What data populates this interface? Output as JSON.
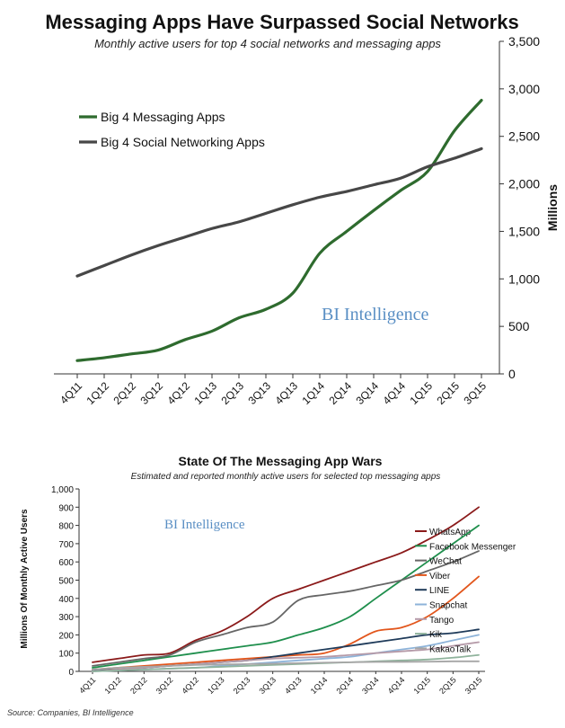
{
  "chart_data": [
    {
      "type": "line",
      "title": "Messaging Apps Have Surpassed Social Networks",
      "subtitle": "Monthly active users for top 4 social networks and messaging apps",
      "xlabel": "",
      "ylabel": "Millions",
      "ylim": [
        0,
        3500
      ],
      "yticks": [
        "0",
        "500",
        "1,000",
        "1,500",
        "2,000",
        "2,500",
        "3,000",
        "3,500"
      ],
      "ytick_values": [
        0,
        500,
        1000,
        1500,
        2000,
        2500,
        3000,
        3500
      ],
      "categories": [
        "4Q11",
        "1Q12",
        "2Q12",
        "3Q12",
        "4Q12",
        "1Q13",
        "2Q13",
        "3Q13",
        "4Q13",
        "1Q14",
        "2Q14",
        "3Q14",
        "4Q14",
        "1Q15",
        "2Q15",
        "3Q15"
      ],
      "legend_position": "top-left",
      "grid": false,
      "watermark": "BI Intelligence",
      "series": [
        {
          "name": "Big 4 Messaging Apps",
          "color": "#2e6b2e",
          "values": [
            140,
            170,
            210,
            250,
            360,
            450,
            590,
            680,
            850,
            1270,
            1500,
            1720,
            1930,
            2130,
            2560,
            2880
          ]
        },
        {
          "name": "Big 4 Social Networking Apps",
          "color": "#474747",
          "values": [
            1030,
            1140,
            1250,
            1350,
            1440,
            1530,
            1600,
            1690,
            1780,
            1860,
            1920,
            1990,
            2060,
            2180,
            2270,
            2370
          ]
        }
      ]
    },
    {
      "type": "line",
      "title": "State Of The Messaging App Wars",
      "subtitle": "Estimated and reported monthly active users for selected top messaging apps",
      "xlabel": "",
      "ylabel": "Millions Of Monthly Active Users",
      "ylim": [
        0,
        1000
      ],
      "yticks": [
        "0",
        "100",
        "200",
        "300",
        "400",
        "500",
        "600",
        "700",
        "800",
        "900",
        "1,000"
      ],
      "ytick_values": [
        0,
        100,
        200,
        300,
        400,
        500,
        600,
        700,
        800,
        900,
        1000
      ],
      "categories": [
        "4Q11",
        "1Q12",
        "2Q12",
        "3Q12",
        "4Q12",
        "1Q13",
        "2Q13",
        "3Q13",
        "4Q13",
        "1Q14",
        "2Q14",
        "3Q14",
        "4Q14",
        "1Q15",
        "2Q15",
        "3Q15"
      ],
      "legend_position": "right",
      "grid": false,
      "watermark": "BI Intelligence",
      "series": [
        {
          "name": "WhatsApp",
          "color": "#8b1a1a",
          "values": [
            50,
            70,
            90,
            100,
            170,
            220,
            300,
            400,
            450,
            500,
            550,
            600,
            650,
            720,
            800,
            900
          ]
        },
        {
          "name": "Facebook Messenger",
          "color": "#1f8f4d",
          "values": [
            20,
            40,
            60,
            80,
            100,
            120,
            140,
            160,
            200,
            240,
            300,
            400,
            500,
            600,
            700,
            800
          ]
        },
        {
          "name": "WeChat",
          "color": "#666666",
          "values": [
            30,
            50,
            70,
            90,
            160,
            200,
            240,
            270,
            390,
            420,
            440,
            470,
            500,
            550,
            600,
            660
          ]
        },
        {
          "name": "Viber",
          "color": "#e2561c",
          "values": [
            10,
            20,
            30,
            40,
            50,
            60,
            70,
            80,
            90,
            100,
            150,
            220,
            240,
            300,
            400,
            520
          ]
        },
        {
          "name": "LINE",
          "color": "#1f3b5a",
          "values": [
            5,
            10,
            20,
            30,
            40,
            50,
            60,
            80,
            100,
            120,
            140,
            160,
            180,
            200,
            210,
            230
          ]
        },
        {
          "name": "Snapchat",
          "color": "#8db3d9",
          "values": [
            0,
            5,
            10,
            15,
            20,
            30,
            40,
            50,
            60,
            70,
            80,
            100,
            120,
            140,
            170,
            200
          ]
        },
        {
          "name": "Tango",
          "color": "#b59aa8",
          "values": [
            0,
            10,
            20,
            30,
            40,
            50,
            60,
            70,
            75,
            80,
            90,
            100,
            110,
            120,
            140,
            160
          ]
        },
        {
          "name": "Kik",
          "color": "#8fb39c",
          "values": [
            0,
            5,
            10,
            15,
            20,
            25,
            30,
            35,
            40,
            45,
            50,
            55,
            60,
            65,
            75,
            90
          ]
        },
        {
          "name": "KakaoTalk",
          "color": "#a6a6a6",
          "values": [
            10,
            20,
            25,
            30,
            35,
            38,
            40,
            42,
            45,
            48,
            50,
            52,
            52,
            53,
            55,
            55
          ]
        }
      ]
    }
  ],
  "source": "Source: Companies, BI Intelligence"
}
